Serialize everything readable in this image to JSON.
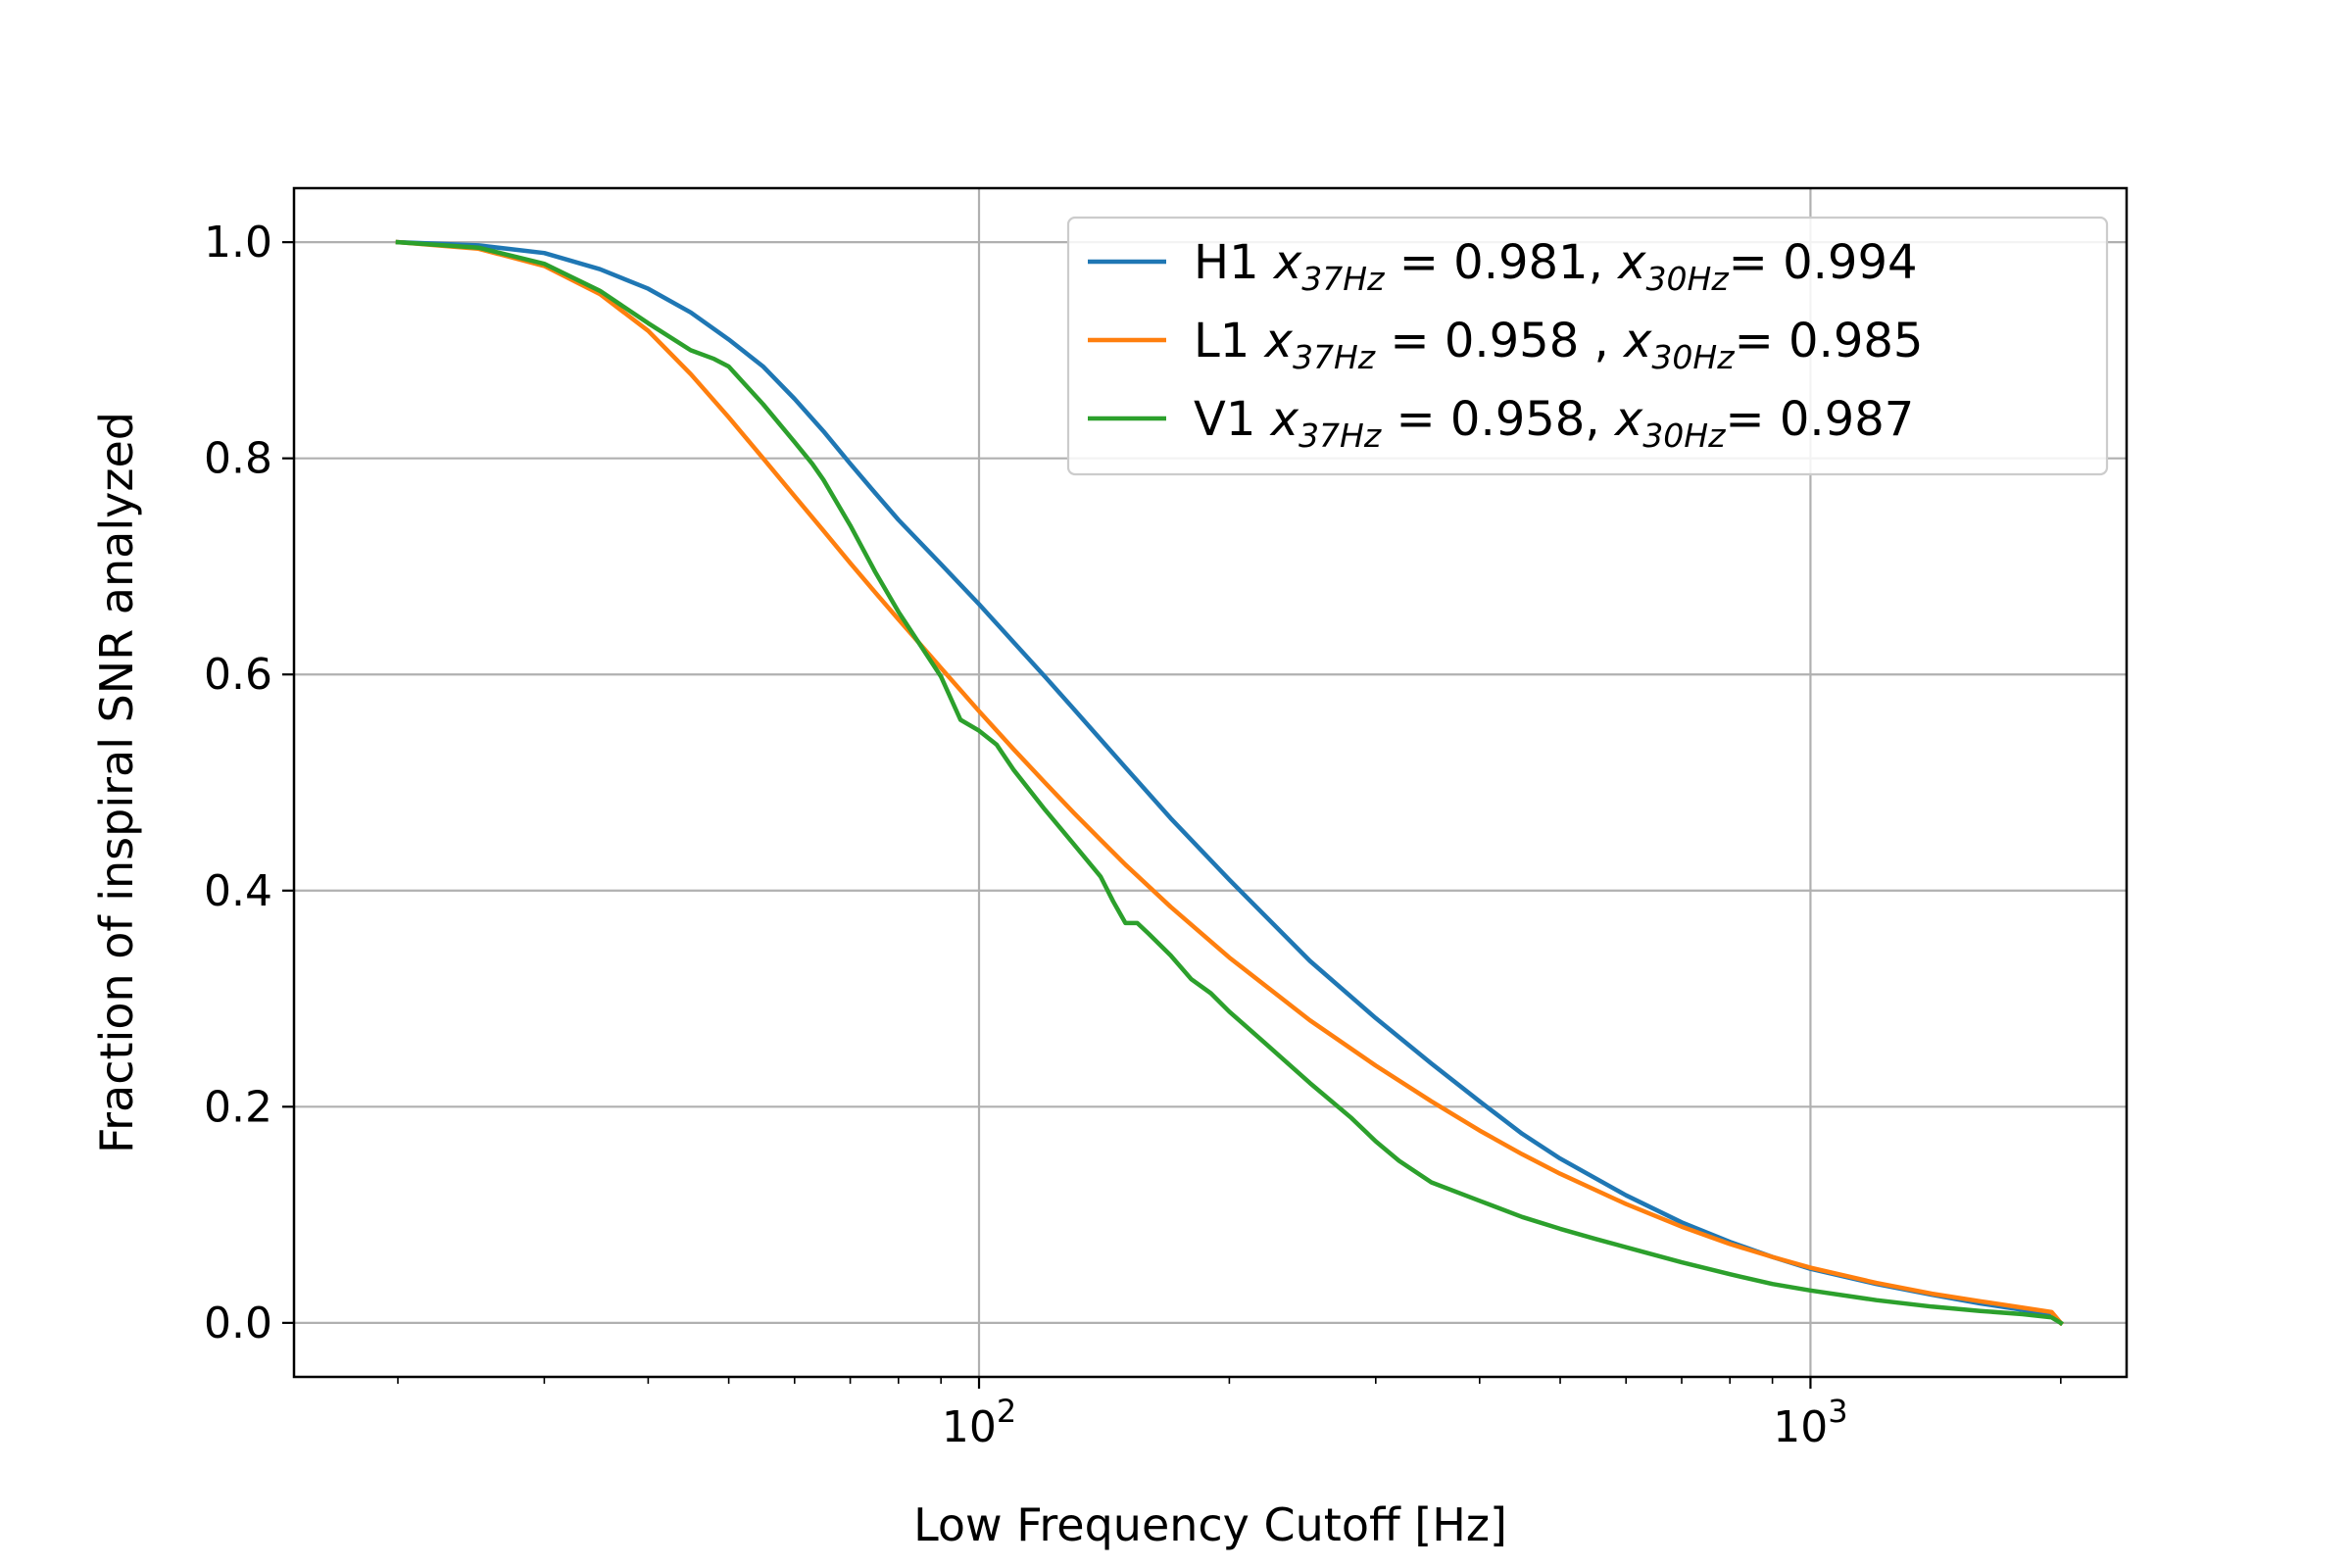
{
  "chart_data": {
    "type": "line",
    "xlabel": "Low Frequency Cutoff [Hz]",
    "ylabel": "Fraction of inspiral SNR analyzed",
    "xscale": "log",
    "xlim": [
      15,
      2400
    ],
    "ylim": [
      -0.05,
      1.05
    ],
    "grid": true,
    "legend_position": "top-right",
    "x_ticks": [
      {
        "value": 100,
        "base": "10",
        "exp": "2"
      },
      {
        "value": 1000,
        "base": "10",
        "exp": "3"
      }
    ],
    "y_ticks": [
      {
        "value": 0.0,
        "label": "0.0"
      },
      {
        "value": 0.2,
        "label": "0.2"
      },
      {
        "value": 0.4,
        "label": "0.4"
      },
      {
        "value": 0.6,
        "label": "0.6"
      },
      {
        "value": 0.8,
        "label": "0.8"
      },
      {
        "value": 1.0,
        "label": "1.0"
      }
    ],
    "series": [
      {
        "name": "H1",
        "color": "#1f77b4",
        "legend": {
          "det": "H1",
          "x": "x",
          "sub1": "37Hz",
          "eq1": " = 0.981, ",
          "sub2": "30Hz",
          "eq2": "= 0.994"
        },
        "points": [
          [
            20,
            1.0
          ],
          [
            25,
            0.997
          ],
          [
            30,
            0.99
          ],
          [
            35,
            0.975
          ],
          [
            40,
            0.957
          ],
          [
            45,
            0.935
          ],
          [
            50,
            0.91
          ],
          [
            55,
            0.885
          ],
          [
            60,
            0.855
          ],
          [
            65,
            0.825
          ],
          [
            70,
            0.795
          ],
          [
            75,
            0.768
          ],
          [
            80,
            0.743
          ],
          [
            90,
            0.702
          ],
          [
            100,
            0.665
          ],
          [
            110,
            0.63
          ],
          [
            120,
            0.598
          ],
          [
            130,
            0.568
          ],
          [
            140,
            0.54
          ],
          [
            150,
            0.514
          ],
          [
            170,
            0.467
          ],
          [
            200,
            0.41
          ],
          [
            250,
            0.335
          ],
          [
            300,
            0.282
          ],
          [
            350,
            0.24
          ],
          [
            400,
            0.205
          ],
          [
            450,
            0.175
          ],
          [
            500,
            0.152
          ],
          [
            600,
            0.118
          ],
          [
            700,
            0.093
          ],
          [
            800,
            0.075
          ],
          [
            900,
            0.061
          ],
          [
            1000,
            0.05
          ],
          [
            1200,
            0.036
          ],
          [
            1400,
            0.026
          ],
          [
            1600,
            0.018
          ],
          [
            1800,
            0.012
          ],
          [
            1950,
            0.008
          ],
          [
            2000,
            0.0
          ]
        ]
      },
      {
        "name": "L1",
        "color": "#ff7f0e",
        "legend": {
          "det": "L1",
          "x": "x",
          "sub1": "37Hz",
          "eq1": " = 0.958 , ",
          "sub2": "30Hz",
          "eq2": "= 0.985"
        },
        "points": [
          [
            20,
            1.0
          ],
          [
            25,
            0.994
          ],
          [
            30,
            0.978
          ],
          [
            35,
            0.952
          ],
          [
            40,
            0.918
          ],
          [
            45,
            0.878
          ],
          [
            50,
            0.838
          ],
          [
            55,
            0.8
          ],
          [
            60,
            0.765
          ],
          [
            65,
            0.733
          ],
          [
            70,
            0.703
          ],
          [
            75,
            0.676
          ],
          [
            80,
            0.651
          ],
          [
            90,
            0.606
          ],
          [
            100,
            0.566
          ],
          [
            110,
            0.531
          ],
          [
            120,
            0.5
          ],
          [
            130,
            0.472
          ],
          [
            140,
            0.447
          ],
          [
            150,
            0.424
          ],
          [
            170,
            0.385
          ],
          [
            200,
            0.338
          ],
          [
            250,
            0.28
          ],
          [
            300,
            0.238
          ],
          [
            350,
            0.205
          ],
          [
            400,
            0.178
          ],
          [
            450,
            0.156
          ],
          [
            500,
            0.138
          ],
          [
            600,
            0.11
          ],
          [
            700,
            0.089
          ],
          [
            800,
            0.073
          ],
          [
            900,
            0.061
          ],
          [
            1000,
            0.051
          ],
          [
            1200,
            0.037
          ],
          [
            1400,
            0.027
          ],
          [
            1600,
            0.02
          ],
          [
            1800,
            0.014
          ],
          [
            1950,
            0.01
          ],
          [
            2000,
            0.0
          ]
        ]
      },
      {
        "name": "V1",
        "color": "#2ca02c",
        "legend": {
          "det": "V1 ",
          "x": "x",
          "sub1": "37Hz",
          "eq1": " = 0.958, ",
          "sub2": "30Hz",
          "eq2": "= 0.987"
        },
        "points": [
          [
            20,
            1.0
          ],
          [
            25,
            0.995
          ],
          [
            30,
            0.98
          ],
          [
            35,
            0.955
          ],
          [
            40,
            0.925
          ],
          [
            45,
            0.9
          ],
          [
            48,
            0.892
          ],
          [
            50,
            0.885
          ],
          [
            55,
            0.85
          ],
          [
            60,
            0.815
          ],
          [
            63,
            0.795
          ],
          [
            65,
            0.78
          ],
          [
            70,
            0.738
          ],
          [
            75,
            0.695
          ],
          [
            80,
            0.658
          ],
          [
            90,
            0.598
          ],
          [
            95,
            0.558
          ],
          [
            100,
            0.548
          ],
          [
            105,
            0.535
          ],
          [
            110,
            0.512
          ],
          [
            120,
            0.475
          ],
          [
            130,
            0.443
          ],
          [
            140,
            0.413
          ],
          [
            145,
            0.39
          ],
          [
            150,
            0.37
          ],
          [
            155,
            0.37
          ],
          [
            160,
            0.36
          ],
          [
            170,
            0.34
          ],
          [
            180,
            0.318
          ],
          [
            190,
            0.305
          ],
          [
            200,
            0.288
          ],
          [
            220,
            0.26
          ],
          [
            250,
            0.222
          ],
          [
            280,
            0.19
          ],
          [
            300,
            0.168
          ],
          [
            320,
            0.15
          ],
          [
            350,
            0.13
          ],
          [
            400,
            0.113
          ],
          [
            450,
            0.098
          ],
          [
            500,
            0.087
          ],
          [
            550,
            0.078
          ],
          [
            600,
            0.07
          ],
          [
            700,
            0.056
          ],
          [
            800,
            0.045
          ],
          [
            900,
            0.036
          ],
          [
            1000,
            0.03
          ],
          [
            1200,
            0.021
          ],
          [
            1400,
            0.015
          ],
          [
            1600,
            0.011
          ],
          [
            1800,
            0.008
          ],
          [
            1950,
            0.005
          ],
          [
            2000,
            0.0
          ]
        ]
      }
    ]
  }
}
